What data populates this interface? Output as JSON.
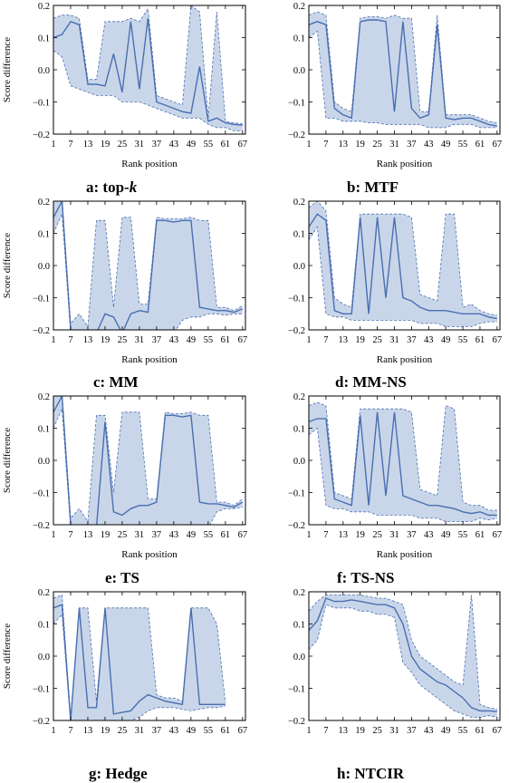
{
  "colors": {
    "line": "#4a6fb0",
    "band": "#c9d6ea",
    "dashed": "#4a6fb0"
  },
  "chart_data": [
    {
      "type": "line",
      "panel": "a",
      "caption_prefix": "a: ",
      "caption_main": "top-",
      "caption_k": "k",
      "xlabel": "Rank position",
      "ylabel": "Score difference",
      "xlim": [
        1,
        68
      ],
      "ylim": [
        -0.2,
        0.2
      ],
      "x": [
        1,
        4,
        7,
        10,
        13,
        16,
        19,
        22,
        25,
        28,
        31,
        34,
        37,
        40,
        43,
        46,
        49,
        52,
        55,
        58,
        61,
        64,
        67
      ],
      "values": [
        0.1,
        0.11,
        0.15,
        0.14,
        -0.045,
        -0.045,
        -0.05,
        0.05,
        -0.07,
        0.15,
        -0.06,
        0.16,
        -0.1,
        -0.11,
        -0.12,
        -0.13,
        -0.135,
        0.01,
        -0.16,
        -0.15,
        -0.165,
        -0.17,
        -0.172
      ],
      "upper": [
        0.16,
        0.17,
        0.17,
        0.16,
        -0.03,
        -0.03,
        0.15,
        0.15,
        0.15,
        0.16,
        0.15,
        0.19,
        -0.08,
        -0.09,
        -0.1,
        -0.11,
        0.2,
        0.18,
        -0.15,
        0.18,
        -0.16,
        -0.165,
        -0.168
      ],
      "lower": [
        0.06,
        0.04,
        -0.05,
        -0.06,
        -0.07,
        -0.08,
        -0.08,
        -0.08,
        -0.1,
        -0.1,
        -0.1,
        -0.11,
        -0.12,
        -0.13,
        -0.14,
        -0.15,
        -0.15,
        -0.15,
        -0.17,
        -0.18,
        -0.18,
        -0.19,
        -0.19
      ]
    },
    {
      "type": "line",
      "panel": "b",
      "caption_prefix": "b: ",
      "caption_main": "MTF",
      "caption_k": "",
      "xlabel": "Rank position",
      "ylabel": "",
      "xlim": [
        1,
        68
      ],
      "ylim": [
        -0.2,
        0.2
      ],
      "x": [
        1,
        4,
        7,
        10,
        13,
        16,
        19,
        22,
        25,
        28,
        31,
        34,
        37,
        40,
        43,
        46,
        49,
        52,
        55,
        58,
        61,
        64,
        67
      ],
      "values": [
        0.14,
        0.15,
        0.14,
        -0.12,
        -0.14,
        -0.15,
        0.15,
        0.155,
        0.155,
        0.15,
        -0.13,
        0.15,
        -0.12,
        -0.15,
        -0.14,
        0.14,
        -0.15,
        -0.155,
        -0.15,
        -0.15,
        -0.16,
        -0.17,
        -0.175
      ],
      "upper": [
        0.17,
        0.18,
        0.17,
        -0.1,
        -0.12,
        -0.13,
        0.16,
        0.165,
        0.165,
        0.16,
        0.17,
        0.16,
        0.16,
        -0.13,
        -0.13,
        0.17,
        -0.14,
        -0.14,
        -0.14,
        -0.14,
        -0.15,
        -0.16,
        -0.165
      ],
      "lower": [
        0.1,
        0.12,
        -0.15,
        -0.15,
        -0.16,
        -0.16,
        -0.16,
        -0.165,
        -0.165,
        -0.17,
        -0.17,
        -0.17,
        -0.17,
        -0.17,
        -0.18,
        -0.18,
        -0.18,
        -0.17,
        -0.17,
        -0.17,
        -0.18,
        -0.18,
        -0.18
      ]
    },
    {
      "type": "line",
      "panel": "c",
      "caption_prefix": "c: ",
      "caption_main": "MM",
      "caption_k": "",
      "xlabel": "Rank position",
      "ylabel": "Score difference",
      "xlim": [
        1,
        68
      ],
      "ylim": [
        -0.2,
        0.2
      ],
      "x": [
        1,
        4,
        7,
        10,
        13,
        16,
        19,
        22,
        25,
        28,
        31,
        34,
        37,
        40,
        43,
        46,
        49,
        52,
        55,
        58,
        61,
        64,
        67
      ],
      "values": [
        0.15,
        0.2,
        -0.2,
        -0.21,
        -0.21,
        -0.21,
        -0.15,
        -0.16,
        -0.21,
        -0.15,
        -0.14,
        -0.145,
        0.14,
        0.14,
        0.135,
        0.14,
        0.14,
        -0.13,
        -0.135,
        -0.14,
        -0.14,
        -0.145,
        -0.135
      ],
      "upper": [
        0.2,
        0.21,
        -0.18,
        -0.15,
        -0.19,
        0.14,
        0.14,
        -0.13,
        0.15,
        0.15,
        -0.12,
        -0.12,
        0.15,
        0.145,
        0.145,
        0.145,
        0.15,
        0.14,
        0.14,
        -0.13,
        -0.13,
        -0.14,
        -0.125
      ],
      "lower": [
        0.1,
        0.16,
        -0.21,
        -0.21,
        -0.21,
        -0.21,
        -0.21,
        -0.21,
        -0.21,
        -0.21,
        -0.21,
        -0.21,
        -0.21,
        -0.21,
        -0.21,
        -0.17,
        -0.16,
        -0.16,
        -0.15,
        -0.15,
        -0.155,
        -0.15,
        -0.15
      ]
    },
    {
      "type": "line",
      "panel": "d",
      "caption_prefix": "d: ",
      "caption_main": "MM-NS",
      "caption_k": "",
      "xlabel": "Rank position",
      "ylabel": "",
      "xlim": [
        1,
        68
      ],
      "ylim": [
        -0.2,
        0.2
      ],
      "x": [
        1,
        4,
        7,
        10,
        13,
        16,
        19,
        22,
        25,
        28,
        31,
        34,
        37,
        40,
        43,
        46,
        49,
        52,
        55,
        58,
        61,
        64,
        67
      ],
      "values": [
        0.12,
        0.16,
        0.14,
        -0.14,
        -0.15,
        -0.15,
        0.15,
        -0.15,
        0.15,
        -0.1,
        0.15,
        -0.1,
        -0.11,
        -0.13,
        -0.14,
        -0.14,
        -0.14,
        -0.145,
        -0.15,
        -0.15,
        -0.15,
        -0.16,
        -0.165
      ],
      "upper": [
        0.18,
        0.2,
        0.17,
        -0.1,
        -0.12,
        -0.13,
        0.16,
        0.16,
        0.16,
        0.16,
        0.16,
        0.16,
        0.15,
        -0.09,
        -0.1,
        -0.11,
        0.16,
        0.16,
        -0.13,
        -0.12,
        -0.14,
        -0.15,
        -0.155
      ],
      "lower": [
        0.08,
        0.12,
        -0.15,
        -0.16,
        -0.16,
        -0.17,
        -0.17,
        -0.17,
        -0.17,
        -0.17,
        -0.17,
        -0.17,
        -0.17,
        -0.18,
        -0.18,
        -0.18,
        -0.19,
        -0.19,
        -0.19,
        -0.19,
        -0.18,
        -0.175,
        -0.175
      ]
    },
    {
      "type": "line",
      "panel": "e",
      "caption_prefix": "e: ",
      "caption_main": "TS",
      "caption_k": "",
      "xlabel": "Rank position",
      "ylabel": "Score difference",
      "xlim": [
        1,
        68
      ],
      "ylim": [
        -0.2,
        0.2
      ],
      "x": [
        1,
        4,
        7,
        10,
        13,
        16,
        19,
        22,
        25,
        28,
        31,
        34,
        37,
        40,
        43,
        46,
        49,
        52,
        55,
        58,
        61,
        64,
        67
      ],
      "values": [
        0.15,
        0.2,
        -0.2,
        -0.21,
        -0.21,
        -0.21,
        0.12,
        -0.16,
        -0.17,
        -0.15,
        -0.14,
        -0.14,
        -0.13,
        0.14,
        0.14,
        0.135,
        0.14,
        -0.13,
        -0.135,
        -0.135,
        -0.14,
        -0.145,
        -0.13
      ],
      "upper": [
        0.2,
        0.21,
        -0.18,
        -0.15,
        -0.19,
        0.14,
        0.14,
        -0.1,
        0.15,
        0.15,
        0.15,
        -0.12,
        -0.12,
        0.15,
        0.145,
        0.145,
        0.15,
        0.14,
        0.14,
        -0.13,
        -0.13,
        -0.14,
        -0.12
      ],
      "lower": [
        0.1,
        0.16,
        -0.21,
        -0.21,
        -0.21,
        -0.21,
        -0.21,
        -0.21,
        -0.21,
        -0.21,
        -0.21,
        -0.21,
        -0.21,
        -0.21,
        -0.21,
        -0.21,
        -0.21,
        -0.21,
        -0.21,
        -0.16,
        -0.15,
        -0.15,
        -0.145
      ]
    },
    {
      "type": "line",
      "panel": "f",
      "caption_prefix": "f: ",
      "caption_main": "TS-NS",
      "caption_k": "",
      "xlabel": "Rank position",
      "ylabel": "",
      "xlim": [
        1,
        68
      ],
      "ylim": [
        -0.2,
        0.2
      ],
      "x": [
        1,
        4,
        7,
        10,
        13,
        16,
        19,
        22,
        25,
        28,
        31,
        34,
        37,
        40,
        43,
        46,
        49,
        52,
        55,
        58,
        61,
        64,
        67
      ],
      "values": [
        0.12,
        0.13,
        0.13,
        -0.12,
        -0.13,
        -0.14,
        0.14,
        -0.14,
        0.15,
        -0.11,
        0.15,
        -0.11,
        -0.12,
        -0.13,
        -0.14,
        -0.14,
        -0.145,
        -0.15,
        -0.16,
        -0.165,
        -0.16,
        -0.17,
        -0.17
      ],
      "upper": [
        0.17,
        0.18,
        0.17,
        -0.1,
        -0.11,
        -0.12,
        0.16,
        0.16,
        0.16,
        0.16,
        0.16,
        0.16,
        0.15,
        -0.09,
        -0.1,
        -0.11,
        0.17,
        0.16,
        -0.13,
        -0.14,
        -0.14,
        -0.155,
        -0.155
      ],
      "lower": [
        0.08,
        0.1,
        -0.14,
        -0.15,
        -0.15,
        -0.16,
        -0.16,
        -0.16,
        -0.17,
        -0.17,
        -0.17,
        -0.17,
        -0.17,
        -0.18,
        -0.18,
        -0.18,
        -0.19,
        -0.19,
        -0.19,
        -0.19,
        -0.18,
        -0.185,
        -0.18
      ]
    },
    {
      "type": "line",
      "panel": "g",
      "caption_prefix": "g: ",
      "caption_main": "Hedge",
      "caption_k": "",
      "xlabel": "",
      "ylabel": "Score difference",
      "xlim": [
        1,
        68
      ],
      "ylim": [
        -0.2,
        0.2
      ],
      "x": [
        1,
        4,
        7,
        10,
        13,
        16,
        19,
        22,
        25,
        28,
        31,
        34,
        37,
        40,
        43,
        46,
        49,
        52,
        55,
        58,
        61
      ],
      "values": [
        0.15,
        0.16,
        -0.2,
        0.15,
        -0.16,
        -0.16,
        0.15,
        -0.18,
        -0.175,
        -0.17,
        -0.14,
        -0.12,
        -0.13,
        -0.14,
        -0.145,
        -0.15,
        0.15,
        -0.15,
        -0.15,
        -0.15,
        -0.15
      ],
      "upper": [
        0.18,
        0.19,
        -0.19,
        0.15,
        0.15,
        -0.14,
        0.15,
        0.15,
        0.15,
        0.15,
        0.15,
        0.15,
        -0.12,
        -0.13,
        -0.13,
        -0.14,
        0.15,
        0.15,
        0.15,
        0.1,
        -0.145
      ],
      "lower": [
        0.1,
        0.13,
        -0.21,
        -0.2,
        -0.2,
        -0.2,
        -0.2,
        -0.2,
        -0.2,
        -0.2,
        -0.19,
        -0.17,
        -0.16,
        -0.16,
        -0.16,
        -0.165,
        -0.17,
        -0.165,
        -0.16,
        -0.16,
        -0.155
      ]
    },
    {
      "type": "line",
      "panel": "h",
      "caption_prefix": "h: ",
      "caption_main": "NTCIR",
      "caption_k": "",
      "xlabel": "",
      "ylabel": "",
      "xlim": [
        1,
        68
      ],
      "ylim": [
        -0.2,
        0.2
      ],
      "x": [
        1,
        4,
        7,
        10,
        13,
        16,
        19,
        22,
        25,
        28,
        31,
        34,
        37,
        40,
        43,
        46,
        49,
        52,
        55,
        58,
        61,
        64,
        67
      ],
      "values": [
        0.08,
        0.11,
        0.18,
        0.17,
        0.17,
        0.175,
        0.17,
        0.165,
        0.16,
        0.16,
        0.15,
        0.1,
        0.0,
        -0.04,
        -0.06,
        -0.08,
        -0.09,
        -0.11,
        -0.13,
        -0.16,
        -0.17,
        -0.17,
        -0.172
      ],
      "upper": [
        0.14,
        0.17,
        0.19,
        0.19,
        0.19,
        0.19,
        0.19,
        0.185,
        0.18,
        0.18,
        0.17,
        0.16,
        0.05,
        0.0,
        -0.02,
        -0.04,
        -0.06,
        -0.08,
        -0.09,
        0.19,
        -0.15,
        -0.16,
        -0.165
      ],
      "lower": [
        0.02,
        0.05,
        0.16,
        0.15,
        0.15,
        0.15,
        0.14,
        0.14,
        0.13,
        0.13,
        0.12,
        -0.02,
        -0.05,
        -0.09,
        -0.11,
        -0.13,
        -0.15,
        -0.17,
        -0.18,
        -0.19,
        -0.19,
        -0.185,
        -0.19
      ]
    }
  ],
  "xticks": [
    1,
    7,
    13,
    19,
    25,
    31,
    37,
    43,
    49,
    55,
    61,
    67
  ],
  "yticks": [
    0.2,
    0.1,
    0.0,
    -0.1,
    -0.2
  ],
  "ytick_labels": [
    "0.2",
    "0.1",
    "0.0",
    "−0.1",
    "−0.2"
  ]
}
